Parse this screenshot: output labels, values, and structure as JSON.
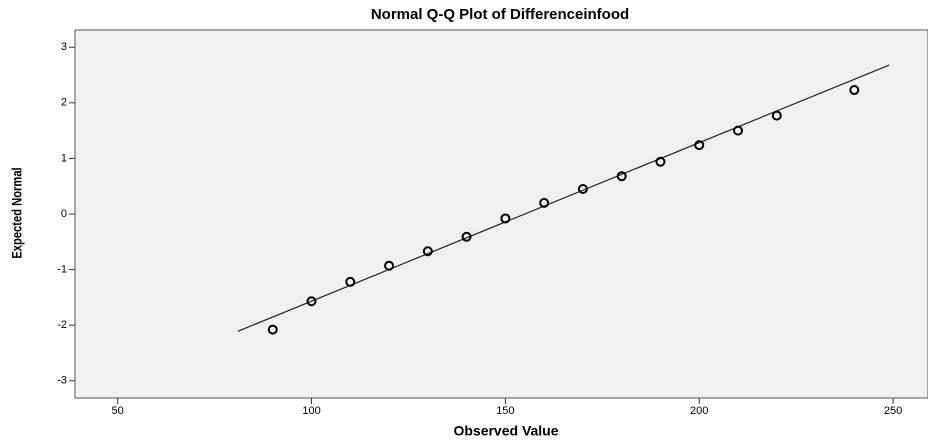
{
  "chart_data": {
    "type": "scatter",
    "title": "Normal Q-Q Plot of Differenceinfood",
    "x_label": "Observed Value",
    "y_label": "Expected Normal",
    "x": [
      90,
      100,
      110,
      120,
      130,
      140,
      150,
      160,
      170,
      180,
      190,
      200,
      210,
      220,
      240
    ],
    "values": [
      -2.08,
      -1.57,
      -1.22,
      -0.93,
      -0.67,
      -0.41,
      -0.08,
      0.2,
      0.45,
      0.68,
      0.94,
      1.24,
      1.5,
      1.77,
      2.23
    ],
    "reference_line": {
      "x": [
        81,
        249
      ],
      "y": [
        -2.11,
        2.68
      ]
    },
    "xlim": [
      39,
      259
    ],
    "ylim": [
      -3.31,
      3.31
    ],
    "xticks": [
      50,
      100,
      150,
      200,
      250
    ],
    "yticks": [
      -3,
      -2,
      -1,
      0,
      1,
      2,
      3
    ],
    "marker_color": "#000000",
    "background": "#f0f0f0"
  }
}
